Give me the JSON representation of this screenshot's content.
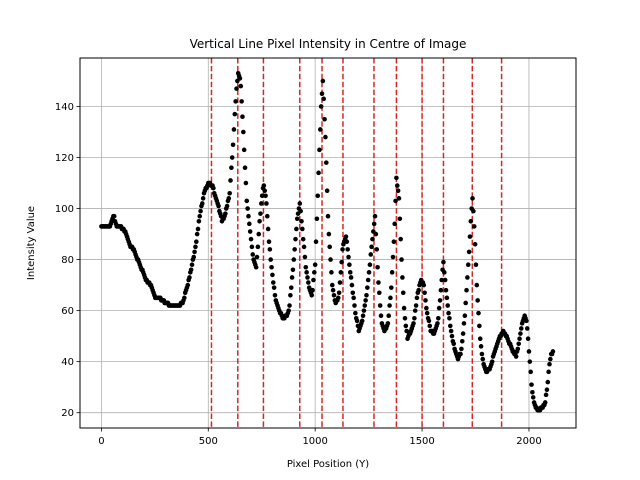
{
  "chart_data": {
    "type": "scatter",
    "title": "Vertical Line Pixel Intensity in Centre of Image",
    "xlabel": "Pixel Position (Y)",
    "ylabel": "Intensity Value",
    "xlim": [
      -100,
      2220
    ],
    "ylim": [
      14,
      159
    ],
    "xticks": [
      0,
      500,
      1000,
      1500,
      2000
    ],
    "yticks": [
      20,
      40,
      60,
      80,
      100,
      120,
      140
    ],
    "grid": true,
    "point_color": "#000000",
    "marker_line_color": "#d62728",
    "marker_lines_x": [
      515,
      638,
      758,
      928,
      1032,
      1130,
      1275,
      1380,
      1500,
      1600,
      1735,
      1872
    ],
    "profile_knots": [
      [
        0,
        93
      ],
      [
        20,
        93
      ],
      [
        40,
        93
      ],
      [
        50,
        96
      ],
      [
        60,
        97
      ],
      [
        70,
        93
      ],
      [
        90,
        93
      ],
      [
        110,
        91
      ],
      [
        130,
        86
      ],
      [
        150,
        84
      ],
      [
        170,
        80
      ],
      [
        190,
        76
      ],
      [
        210,
        72
      ],
      [
        230,
        70
      ],
      [
        250,
        65
      ],
      [
        270,
        65
      ],
      [
        300,
        63
      ],
      [
        330,
        62
      ],
      [
        360,
        62
      ],
      [
        380,
        63
      ],
      [
        400,
        69
      ],
      [
        420,
        76
      ],
      [
        440,
        85
      ],
      [
        460,
        97
      ],
      [
        480,
        106
      ],
      [
        500,
        110
      ],
      [
        520,
        109
      ],
      [
        535,
        104
      ],
      [
        550,
        100
      ],
      [
        565,
        95
      ],
      [
        580,
        98
      ],
      [
        600,
        106
      ],
      [
        615,
        124
      ],
      [
        630,
        145
      ],
      [
        640,
        153
      ],
      [
        650,
        151
      ],
      [
        665,
        128
      ],
      [
        680,
        103
      ],
      [
        695,
        92
      ],
      [
        710,
        80
      ],
      [
        725,
        77
      ],
      [
        740,
        95
      ],
      [
        758,
        110
      ],
      [
        770,
        104
      ],
      [
        785,
        86
      ],
      [
        800,
        74
      ],
      [
        815,
        64
      ],
      [
        830,
        60
      ],
      [
        850,
        57
      ],
      [
        870,
        58
      ],
      [
        880,
        62
      ],
      [
        900,
        80
      ],
      [
        915,
        95
      ],
      [
        928,
        102
      ],
      [
        940,
        92
      ],
      [
        955,
        78
      ],
      [
        970,
        70
      ],
      [
        985,
        66
      ],
      [
        1000,
        78
      ],
      [
        1015,
        112
      ],
      [
        1028,
        140
      ],
      [
        1036,
        150
      ],
      [
        1048,
        128
      ],
      [
        1062,
        92
      ],
      [
        1080,
        70
      ],
      [
        1095,
        63
      ],
      [
        1110,
        65
      ],
      [
        1120,
        75
      ],
      [
        1130,
        86
      ],
      [
        1145,
        89
      ],
      [
        1160,
        78
      ],
      [
        1175,
        68
      ],
      [
        1190,
        58
      ],
      [
        1205,
        52
      ],
      [
        1220,
        56
      ],
      [
        1240,
        66
      ],
      [
        1258,
        80
      ],
      [
        1270,
        90
      ],
      [
        1280,
        97
      ],
      [
        1295,
        72
      ],
      [
        1310,
        56
      ],
      [
        1325,
        52
      ],
      [
        1340,
        55
      ],
      [
        1355,
        68
      ],
      [
        1370,
        90
      ],
      [
        1380,
        112
      ],
      [
        1392,
        104
      ],
      [
        1405,
        78
      ],
      [
        1418,
        58
      ],
      [
        1432,
        49
      ],
      [
        1448,
        52
      ],
      [
        1462,
        56
      ],
      [
        1478,
        66
      ],
      [
        1495,
        72
      ],
      [
        1508,
        70
      ],
      [
        1522,
        60
      ],
      [
        1540,
        52
      ],
      [
        1558,
        51
      ],
      [
        1575,
        56
      ],
      [
        1592,
        72
      ],
      [
        1600,
        79
      ],
      [
        1610,
        70
      ],
      [
        1622,
        60
      ],
      [
        1640,
        50
      ],
      [
        1655,
        44
      ],
      [
        1668,
        41
      ],
      [
        1683,
        44
      ],
      [
        1700,
        58
      ],
      [
        1718,
        80
      ],
      [
        1730,
        98
      ],
      [
        1736,
        104
      ],
      [
        1745,
        92
      ],
      [
        1758,
        66
      ],
      [
        1772,
        49
      ],
      [
        1785,
        40
      ],
      [
        1800,
        36
      ],
      [
        1815,
        37
      ],
      [
        1830,
        41
      ],
      [
        1848,
        46
      ],
      [
        1865,
        50
      ],
      [
        1880,
        52
      ],
      [
        1895,
        50
      ],
      [
        1910,
        47
      ],
      [
        1925,
        44
      ],
      [
        1940,
        42
      ],
      [
        1955,
        48
      ],
      [
        1968,
        55
      ],
      [
        1978,
        58
      ],
      [
        1990,
        55
      ],
      [
        2002,
        42
      ],
      [
        2015,
        28
      ],
      [
        2030,
        22
      ],
      [
        2045,
        21
      ],
      [
        2060,
        22
      ],
      [
        2075,
        23
      ],
      [
        2085,
        30
      ],
      [
        2095,
        38
      ],
      [
        2105,
        43
      ],
      [
        2112,
        44
      ]
    ]
  }
}
